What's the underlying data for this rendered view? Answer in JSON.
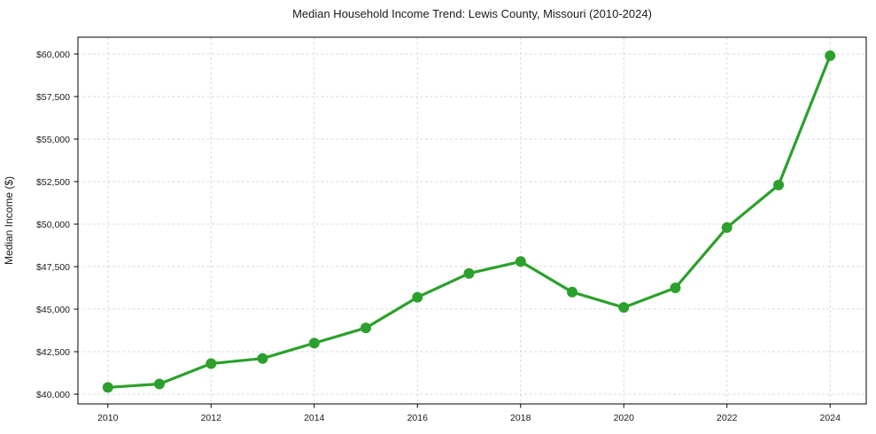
{
  "figure": {
    "background": "#ffffff",
    "text_color": "#1a1a1a",
    "spine_color": "#000000"
  },
  "chart_data": {
    "type": "line",
    "title": "Median Household Income Trend: Lewis County, Missouri (2010-2024)",
    "xlabel": "",
    "ylabel": "Median Income ($)",
    "x": [
      2010,
      2011,
      2012,
      2013,
      2014,
      2015,
      2016,
      2017,
      2018,
      2019,
      2020,
      2021,
      2022,
      2023,
      2024
    ],
    "series": [
      {
        "name": "Median Household Income",
        "color": "#2ca02c",
        "marker": "circle",
        "values": [
          40400,
          40600,
          41800,
          42100,
          43000,
          43900,
          45700,
          47100,
          47800,
          46000,
          45100,
          46250,
          49800,
          52300,
          59900
        ]
      }
    ],
    "x_ticks": [
      2010,
      2012,
      2014,
      2016,
      2018,
      2020,
      2022,
      2024
    ],
    "x_tick_labels": [
      "2010",
      "2012",
      "2014",
      "2016",
      "2018",
      "2020",
      "2022",
      "2024"
    ],
    "y_ticks": [
      40000,
      42500,
      45000,
      47500,
      50000,
      52500,
      55000,
      57500,
      60000
    ],
    "y_tick_labels": [
      "$40,000",
      "$42,500",
      "$45,000",
      "$47,500",
      "$50,000",
      "$52,500",
      "$55,000",
      "$57,500",
      "$60,000"
    ],
    "xlim": [
      2009.42,
      2024.7
    ],
    "ylim": [
      39430,
      60990
    ],
    "grid": true,
    "grid_style": "dashed",
    "grid_color": "#d9d9d9",
    "legend": "none"
  }
}
